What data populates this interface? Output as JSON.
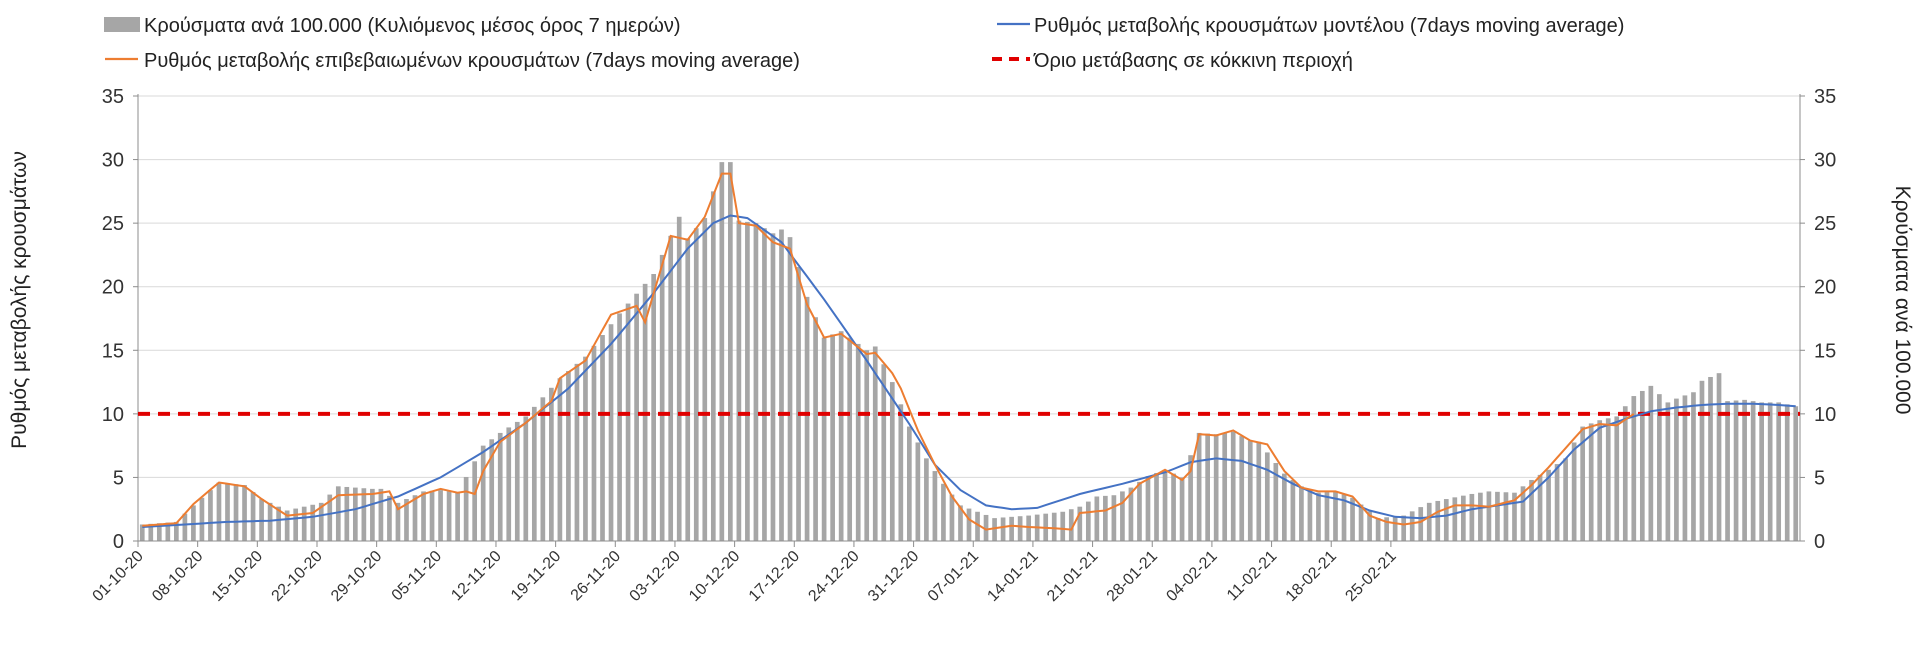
{
  "chart_data": {
    "type": "bar+line",
    "title": "",
    "ylabel_left": "Ρυθμός μεταβολής κρουσμάτων",
    "ylabel_right": "Κρούσματα ανά 100.000",
    "ylim_left": [
      0,
      35
    ],
    "ylim_right": [
      0,
      35
    ],
    "yticks": [
      "0",
      "5",
      "10",
      "15",
      "20",
      "25",
      "30",
      "35"
    ],
    "yticks_values": [
      0,
      5,
      10,
      15,
      20,
      25,
      30,
      35
    ],
    "x_start_date": "01-10-20",
    "x_tick_labels": [
      "01-10-20",
      "08-10-20",
      "15-10-20",
      "22-10-20",
      "29-10-20",
      "05-11-20",
      "12-11-20",
      "19-11-20",
      "26-11-20",
      "03-12-20",
      "10-12-20",
      "17-12-20",
      "24-12-20",
      "31-12-20",
      "07-01-21",
      "14-01-21",
      "21-01-21",
      "28-01-21",
      "04-02-21",
      "11-02-21",
      "18-02-21",
      "25-02-21"
    ],
    "legend": {
      "bars": "Κρούσματα ανά 100.000 (Κυλιόμενος μέσος όρος 7 ημερών)",
      "model": "Ρυθμός μεταβολής κρουσμάτων μοντέλου (7days moving average)",
      "confirmed": "Ρυθμός μεταβολής επιβεβαιωμένων κρουσμάτων (7days moving average)",
      "threshold": "Όριο μετάβασης σε κόκκινη περιοχή"
    },
    "colors": {
      "bars": "#a6a6a6",
      "model": "#4472c4",
      "confirmed": "#ed7d31",
      "threshold": "#e00000",
      "grid": "#d9d9d9",
      "axis": "#8c8c8c"
    },
    "threshold_value": 10,
    "bars_key": [
      [
        0,
        1.3
      ],
      [
        4,
        1.5
      ],
      [
        6,
        2.8
      ],
      [
        9,
        4.6
      ],
      [
        12,
        4.4
      ],
      [
        14,
        3.3
      ],
      [
        17,
        2.4
      ],
      [
        21,
        3.0
      ],
      [
        23,
        4.3
      ],
      [
        27,
        4.1
      ],
      [
        28,
        4.1
      ],
      [
        30,
        3.0
      ],
      [
        33,
        3.9
      ],
      [
        35,
        4.0
      ],
      [
        37,
        3.8
      ],
      [
        40,
        7.5
      ],
      [
        42,
        8.5
      ],
      [
        45,
        9.8
      ],
      [
        49,
        12.8
      ],
      [
        52,
        14.5
      ],
      [
        56,
        17.9
      ],
      [
        60,
        21.0
      ],
      [
        62,
        24.0
      ],
      [
        63,
        25.5
      ],
      [
        64,
        23.8
      ],
      [
        66,
        25.4
      ],
      [
        67,
        27.5
      ],
      [
        68,
        29.8
      ],
      [
        69,
        29.8
      ],
      [
        70,
        25.2
      ],
      [
        72,
        25.0
      ],
      [
        74,
        24.2
      ],
      [
        75,
        24.5
      ],
      [
        76,
        23.9
      ],
      [
        78,
        19.2
      ],
      [
        80,
        16.0
      ],
      [
        82,
        16.5
      ],
      [
        85,
        15.0
      ],
      [
        86,
        15.3
      ],
      [
        88,
        12.5
      ],
      [
        90,
        9.0
      ],
      [
        92,
        6.5
      ],
      [
        94,
        4.5
      ],
      [
        96,
        2.8
      ],
      [
        100,
        1.8
      ],
      [
        104,
        2.0
      ],
      [
        108,
        2.3
      ],
      [
        110,
        2.7
      ],
      [
        112,
        3.5
      ],
      [
        114,
        3.6
      ],
      [
        116,
        4.2
      ],
      [
        118,
        5.1
      ],
      [
        120,
        5.6
      ],
      [
        122,
        5.0
      ],
      [
        124,
        8.5
      ],
      [
        126,
        8.4
      ],
      [
        128,
        8.6
      ],
      [
        130,
        7.9
      ],
      [
        131,
        7.8
      ],
      [
        134,
        5.3
      ],
      [
        136,
        4.3
      ],
      [
        138,
        3.8
      ],
      [
        140,
        3.9
      ],
      [
        142,
        3.4
      ],
      [
        145,
        1.8
      ],
      [
        148,
        2.0
      ],
      [
        151,
        3.0
      ],
      [
        153,
        3.3
      ],
      [
        156,
        3.7
      ],
      [
        158,
        3.9
      ],
      [
        161,
        3.8
      ],
      [
        163,
        4.8
      ],
      [
        165,
        5.6
      ],
      [
        167,
        6.5
      ],
      [
        169,
        9.0
      ],
      [
        171,
        9.5
      ],
      [
        173,
        9.8
      ],
      [
        175,
        11.4
      ],
      [
        177,
        12.2
      ],
      [
        179,
        10.9
      ],
      [
        180,
        11.2
      ],
      [
        182,
        11.7
      ],
      [
        183,
        12.6
      ],
      [
        185,
        13.2
      ],
      [
        186,
        11.0
      ],
      [
        188,
        11.1
      ],
      [
        190,
        10.9
      ],
      [
        192,
        10.9
      ],
      [
        194,
        10.6
      ]
    ],
    "confirmed_key": [
      [
        0,
        1.2
      ],
      [
        4,
        1.4
      ],
      [
        6,
        2.9
      ],
      [
        9,
        4.6
      ],
      [
        12,
        4.3
      ],
      [
        14,
        3.3
      ],
      [
        17,
        2.0
      ],
      [
        20,
        2.2
      ],
      [
        23,
        3.6
      ],
      [
        27,
        3.7
      ],
      [
        29,
        3.9
      ],
      [
        30,
        2.5
      ],
      [
        33,
        3.7
      ],
      [
        35,
        4.1
      ],
      [
        37,
        3.8
      ],
      [
        38,
        3.9
      ],
      [
        39,
        3.7
      ],
      [
        40,
        5.5
      ],
      [
        42,
        7.8
      ],
      [
        45,
        9.3
      ],
      [
        48,
        11.0
      ],
      [
        49,
        12.8
      ],
      [
        52,
        14.2
      ],
      [
        55,
        17.8
      ],
      [
        58,
        18.5
      ],
      [
        59,
        17.2
      ],
      [
        62,
        24.0
      ],
      [
        64,
        23.7
      ],
      [
        66,
        25.5
      ],
      [
        68,
        28.9
      ],
      [
        69,
        28.9
      ],
      [
        70,
        25.0
      ],
      [
        72,
        24.8
      ],
      [
        74,
        23.5
      ],
      [
        76,
        23.0
      ],
      [
        78,
        18.6
      ],
      [
        80,
        16.0
      ],
      [
        82,
        16.3
      ],
      [
        85,
        14.7
      ],
      [
        86,
        14.8
      ],
      [
        88,
        13.2
      ],
      [
        89,
        12.0
      ],
      [
        91,
        8.7
      ],
      [
        93,
        6.0
      ],
      [
        95,
        3.5
      ],
      [
        97,
        1.7
      ],
      [
        99,
        0.9
      ],
      [
        102,
        1.2
      ],
      [
        104,
        1.1
      ],
      [
        107,
        1.0
      ],
      [
        109,
        0.9
      ],
      [
        110,
        2.2
      ],
      [
        113,
        2.4
      ],
      [
        115,
        3.0
      ],
      [
        117,
        4.5
      ],
      [
        120,
        5.6
      ],
      [
        122,
        4.8
      ],
      [
        123,
        5.5
      ],
      [
        124,
        8.4
      ],
      [
        126,
        8.3
      ],
      [
        128,
        8.7
      ],
      [
        130,
        7.9
      ],
      [
        132,
        7.6
      ],
      [
        134,
        5.5
      ],
      [
        136,
        4.2
      ],
      [
        138,
        3.9
      ],
      [
        140,
        3.9
      ],
      [
        142,
        3.5
      ],
      [
        144,
        2.0
      ],
      [
        146,
        1.5
      ],
      [
        148,
        1.3
      ],
      [
        150,
        1.5
      ],
      [
        152,
        2.3
      ],
      [
        154,
        2.8
      ],
      [
        156,
        2.8
      ],
      [
        158,
        2.7
      ],
      [
        161,
        3.2
      ],
      [
        163,
        4.4
      ],
      [
        165,
        5.8
      ],
      [
        167,
        7.3
      ],
      [
        169,
        8.8
      ],
      [
        171,
        9.2
      ],
      [
        173,
        9.1
      ],
      [
        175,
        10.0
      ]
    ],
    "model_key": [
      [
        0,
        1.1
      ],
      [
        5,
        1.3
      ],
      [
        10,
        1.5
      ],
      [
        15,
        1.6
      ],
      [
        20,
        1.9
      ],
      [
        25,
        2.5
      ],
      [
        30,
        3.5
      ],
      [
        35,
        5.0
      ],
      [
        40,
        7.0
      ],
      [
        45,
        9.3
      ],
      [
        50,
        12.0
      ],
      [
        55,
        15.5
      ],
      [
        60,
        19.5
      ],
      [
        64,
        23.0
      ],
      [
        67,
        25.0
      ],
      [
        69,
        25.6
      ],
      [
        71,
        25.4
      ],
      [
        75,
        23.5
      ],
      [
        80,
        19.0
      ],
      [
        85,
        14.2
      ],
      [
        90,
        9.2
      ],
      [
        93,
        6.0
      ],
      [
        96,
        4.0
      ],
      [
        99,
        2.8
      ],
      [
        102,
        2.5
      ],
      [
        105,
        2.6
      ],
      [
        110,
        3.7
      ],
      [
        115,
        4.5
      ],
      [
        120,
        5.4
      ],
      [
        123,
        6.2
      ],
      [
        126,
        6.5
      ],
      [
        129,
        6.3
      ],
      [
        132,
        5.6
      ],
      [
        135,
        4.5
      ],
      [
        138,
        3.6
      ],
      [
        141,
        3.2
      ],
      [
        144,
        2.4
      ],
      [
        147,
        1.9
      ],
      [
        150,
        1.8
      ],
      [
        153,
        2.0
      ],
      [
        156,
        2.5
      ],
      [
        159,
        2.8
      ],
      [
        162,
        3.1
      ],
      [
        165,
        5.0
      ],
      [
        168,
        7.2
      ],
      [
        171,
        8.9
      ],
      [
        174,
        9.6
      ],
      [
        177,
        10.2
      ],
      [
        180,
        10.5
      ],
      [
        183,
        10.7
      ],
      [
        186,
        10.8
      ],
      [
        189,
        10.8
      ],
      [
        192,
        10.7
      ],
      [
        194,
        10.6
      ]
    ],
    "days": 195
  }
}
